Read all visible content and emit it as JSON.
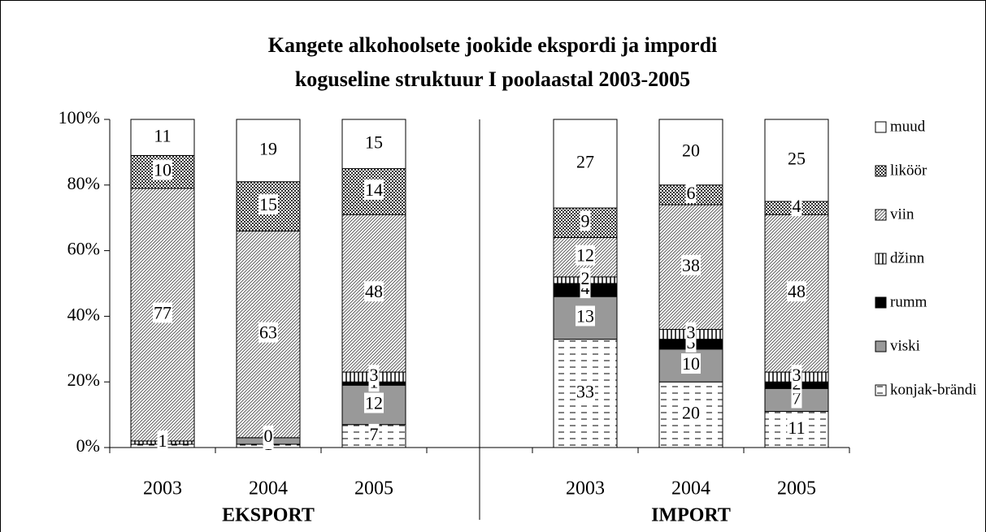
{
  "chart_data": {
    "type": "stacked_bar",
    "title": [
      "Kangete alkohoolsete jookide ekspordi ja impordi",
      "koguseline struktuur I poolaastal 2003-2005"
    ],
    "categories": [
      "2003",
      "2004",
      "2005",
      null,
      "2003",
      "2004",
      "2005"
    ],
    "groups": [
      "EKSPORT",
      "IMPORT"
    ],
    "series": [
      {
        "name": "konjak-brändi",
        "color": "#ffffff",
        "values": [
          1,
          1,
          7,
          null,
          33,
          20,
          11
        ]
      },
      {
        "name": "viski",
        "color": "#999999",
        "values": [
          0,
          2,
          12,
          null,
          13,
          10,
          7
        ]
      },
      {
        "name": "rumm",
        "color": "#000000",
        "values": [
          0,
          0,
          1,
          null,
          4,
          3,
          2
        ]
      },
      {
        "name": "džinn",
        "color": "#ffffff",
        "values": [
          1,
          0,
          3,
          null,
          2,
          3,
          3
        ]
      },
      {
        "name": "viin",
        "color": "#ffffff",
        "values": [
          77,
          63,
          48,
          null,
          12,
          38,
          48
        ]
      },
      {
        "name": "liköör",
        "color": "#ffffff",
        "values": [
          10,
          15,
          14,
          null,
          9,
          6,
          4
        ]
      },
      {
        "name": "muud",
        "color": "#ffffff",
        "values": [
          11,
          19,
          15,
          null,
          27,
          20,
          25
        ]
      }
    ],
    "ylim": [
      0,
      100
    ],
    "yticks": [
      {
        "value": 0,
        "label": "0%"
      },
      {
        "value": 20,
        "label": "20%"
      },
      {
        "value": 40,
        "label": "40%"
      },
      {
        "value": 60,
        "label": "60%"
      },
      {
        "value": 80,
        "label": "80%"
      },
      {
        "value": 100,
        "label": "100%"
      }
    ],
    "legend": "right"
  }
}
